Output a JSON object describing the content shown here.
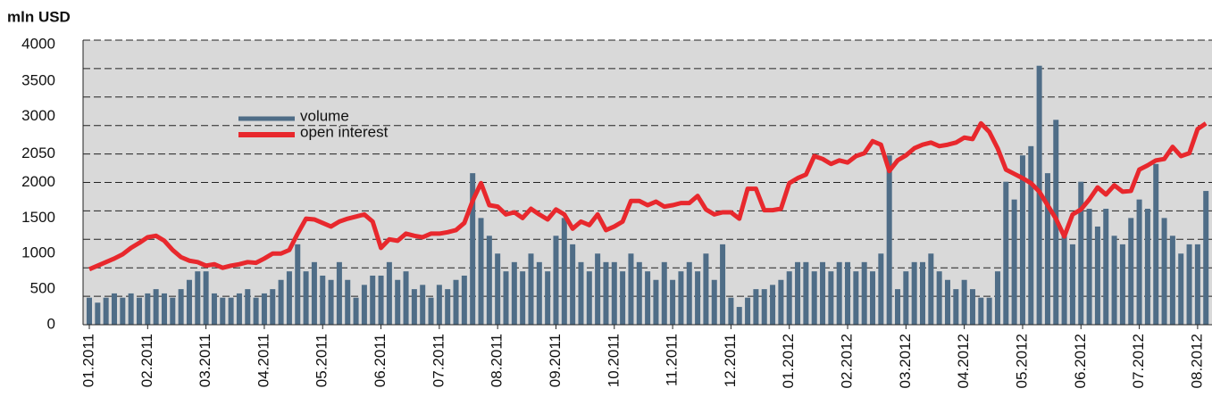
{
  "chart_data": {
    "type": "combo",
    "title": "mln USD",
    "categories": [
      "01.2011",
      null,
      null,
      null,
      null,
      null,
      null,
      "02.2011",
      null,
      null,
      null,
      null,
      null,
      null,
      "03.2011",
      null,
      null,
      null,
      null,
      null,
      null,
      "04.2011",
      null,
      null,
      null,
      null,
      null,
      null,
      "05.2011",
      null,
      null,
      null,
      null,
      null,
      null,
      "06.2011",
      null,
      null,
      null,
      null,
      null,
      null,
      "07.2011",
      null,
      null,
      null,
      null,
      null,
      null,
      "08.2011",
      null,
      null,
      null,
      null,
      null,
      null,
      "09.2011",
      null,
      null,
      null,
      null,
      null,
      null,
      "10.2011",
      null,
      null,
      null,
      null,
      null,
      null,
      "11.2011",
      null,
      null,
      null,
      null,
      null,
      null,
      "12.2011",
      null,
      null,
      null,
      null,
      null,
      null,
      "01.2012",
      null,
      null,
      null,
      null,
      null,
      null,
      "02.2012",
      null,
      null,
      null,
      null,
      null,
      null,
      "03.2012",
      null,
      null,
      null,
      null,
      null,
      null,
      "04.2012",
      null,
      null,
      null,
      null,
      null,
      null,
      "05.2012",
      null,
      null,
      null,
      null,
      null,
      null,
      "06.2012",
      null,
      null,
      null,
      null,
      null,
      null,
      "07.2012",
      null,
      null,
      null,
      null,
      null,
      null,
      "08.2012",
      null
    ],
    "series": [
      {
        "name": "volume",
        "type": "bar",
        "color": "#4f6d87",
        "values": [
          380,
          310,
          380,
          440,
          380,
          440,
          380,
          440,
          500,
          440,
          380,
          500,
          630,
          750,
          750,
          440,
          380,
          380,
          440,
          500,
          380,
          440,
          500,
          630,
          750,
          1130,
          750,
          880,
          690,
          630,
          880,
          630,
          380,
          560,
          690,
          690,
          880,
          630,
          750,
          500,
          560,
          380,
          560,
          500,
          630,
          690,
          2130,
          1500,
          1250,
          1000,
          750,
          880,
          750,
          1000,
          880,
          750,
          1250,
          1500,
          1130,
          880,
          750,
          1000,
          880,
          880,
          750,
          1000,
          880,
          750,
          630,
          880,
          630,
          750,
          880,
          750,
          1000,
          630,
          1130,
          380,
          250,
          380,
          500,
          500,
          560,
          630,
          750,
          880,
          880,
          750,
          880,
          750,
          880,
          880,
          750,
          880,
          750,
          1000,
          2380,
          500,
          750,
          880,
          880,
          1000,
          750,
          630,
          500,
          630,
          500,
          380,
          380,
          750,
          2010,
          1760,
          2380,
          2510,
          3640,
          2130,
          2880,
          1250,
          1130,
          2010,
          1630,
          1380,
          1630,
          1250,
          1130,
          1500,
          1760,
          1630,
          2260,
          1500,
          1250,
          1000,
          1130,
          1130,
          1880
        ]
      },
      {
        "name": "open interest",
        "type": "line",
        "color": "#e8282d",
        "values": [
          780,
          830,
          880,
          930,
          990,
          1080,
          1150,
          1230,
          1250,
          1180,
          1050,
          950,
          900,
          880,
          830,
          850,
          800,
          830,
          850,
          880,
          870,
          930,
          1000,
          1000,
          1050,
          1280,
          1490,
          1480,
          1430,
          1380,
          1450,
          1490,
          1520,
          1550,
          1450,
          1080,
          1200,
          1180,
          1280,
          1250,
          1230,
          1280,
          1280,
          1300,
          1330,
          1430,
          1740,
          1990,
          1680,
          1660,
          1550,
          1580,
          1500,
          1630,
          1550,
          1480,
          1620,
          1550,
          1350,
          1450,
          1400,
          1550,
          1330,
          1380,
          1450,
          1740,
          1740,
          1680,
          1730,
          1660,
          1680,
          1710,
          1710,
          1810,
          1620,
          1550,
          1580,
          1580,
          1490,
          1910,
          1910,
          1610,
          1610,
          1630,
          1990,
          2060,
          2110,
          2370,
          2330,
          2260,
          2310,
          2280,
          2370,
          2410,
          2580,
          2530,
          2160,
          2310,
          2380,
          2480,
          2530,
          2560,
          2510,
          2530,
          2560,
          2630,
          2610,
          2830,
          2710,
          2480,
          2180,
          2120,
          2060,
          1990,
          1870,
          1680,
          1490,
          1240,
          1550,
          1620,
          1760,
          1930,
          1830,
          1960,
          1870,
          1880,
          2180,
          2240,
          2310,
          2330,
          2500,
          2370,
          2410,
          2750,
          2830
        ]
      }
    ],
    "ylim": [
      0,
      4000
    ],
    "yticks": [
      0,
      500,
      1000,
      1500,
      2000,
      {
        "value": 2400,
        "label": "2050"
      },
      {
        "value": 2930,
        "label": "3000"
      },
      {
        "value": 3420,
        "label": "3500"
      },
      {
        "value": 3940,
        "label": "4000"
      }
    ],
    "gridlines": [
      400,
      800,
      1200,
      1600,
      2000,
      2400,
      2800,
      3200,
      3600,
      4000
    ],
    "grid": true,
    "legend": "upper-left"
  }
}
